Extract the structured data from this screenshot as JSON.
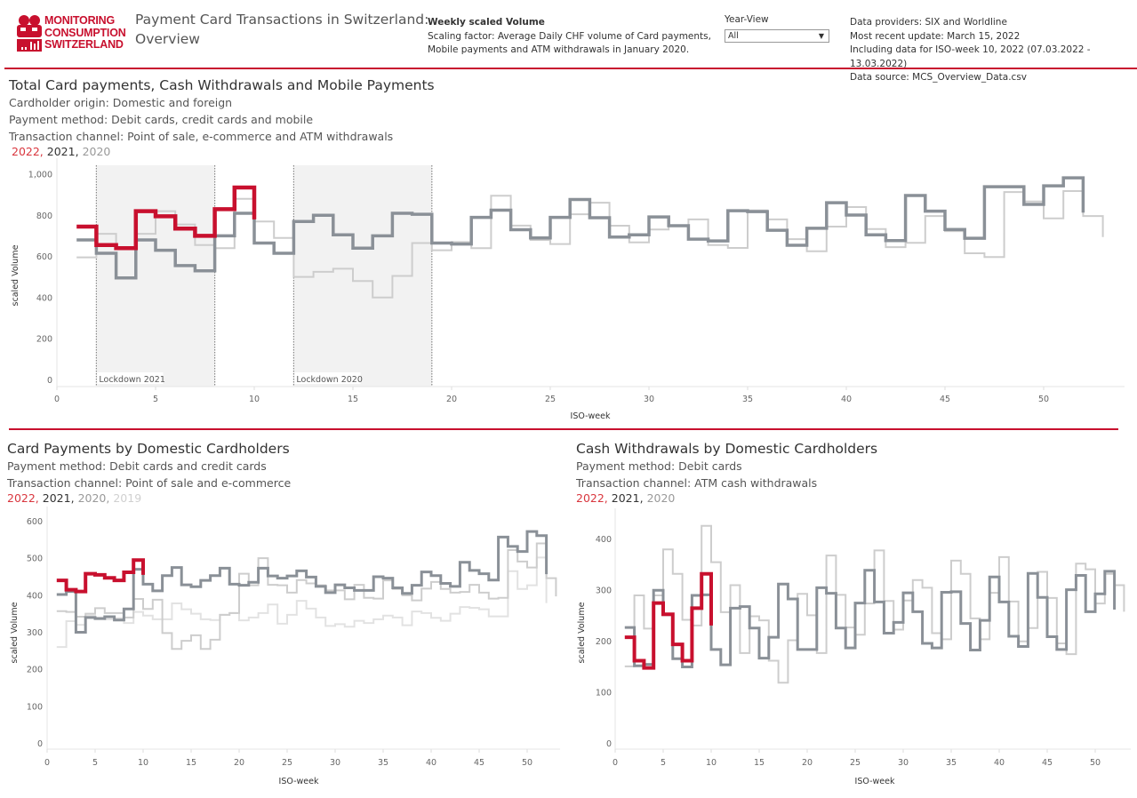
{
  "header": {
    "logo_lines": [
      "MONITORING",
      "CONSUMPTION",
      "SWITZERLAND"
    ],
    "title_line1": "Payment Card Transactions in Switzerland:",
    "title_line2": "Overview",
    "scaling_heading": "Weekly scaled Volume",
    "scaling_line1": "Scaling factor: Average Daily CHF volume of Card payments,",
    "scaling_line2": "Mobile payments and ATM withdrawals in January 2020.",
    "year_view_label": "Year-View",
    "year_view_value": "All",
    "info_line1": "Data providers: SIX and Worldline",
    "info_line2": "Most recent update: March 15, 2022",
    "info_line3": "Including data for ISO-week 10, 2022 (07.03.2022 - 13.03.2022)",
    "info_line4": "Data source: MCS_Overview_Data.csv"
  },
  "colors": {
    "accent": "#c8102e",
    "y2022": "#c8102e",
    "y2021": "#8a9097",
    "y2020": "#cdcdcd",
    "y2019": "#e2e2e2",
    "lockdown": "#f2f2f2"
  },
  "sections": {
    "total": {
      "title": "Total Card payments, Cash Withdrawals and Mobile Payments",
      "sub1": "Cardholder origin: Domestic and foreign",
      "sub2": "Payment method: Debit cards, credit cards and mobile",
      "sub3": "Transaction channel: Point of sale, e-commerce and ATM withdrawals",
      "legend": [
        "2022,",
        "2021,",
        "2020"
      ]
    },
    "card": {
      "title": "Card Payments by Domestic Cardholders",
      "sub1": "Payment method: Debit cards and credit cards",
      "sub2": "Transaction channel: Point of sale and e-commerce",
      "legend": [
        "2022,",
        "2021,",
        "2020,",
        "2019"
      ]
    },
    "cash": {
      "title": "Cash Withdrawals by Domestic Cardholders",
      "sub1": "Payment method: Debit cards",
      "sub2": "Transaction channel: ATM cash withdrawals",
      "legend": [
        "2022,",
        "2021,",
        "2020"
      ]
    }
  },
  "chart_data": [
    {
      "type": "line",
      "step": true,
      "xlabel": "ISO-week",
      "ylabel": "scaled Volume",
      "xlim": [
        0,
        54
      ],
      "ylim": [
        0,
        1000
      ],
      "xticks": [
        0,
        5,
        10,
        15,
        20,
        25,
        30,
        35,
        40,
        45,
        50
      ],
      "yticks": [
        0,
        200,
        400,
        600,
        800,
        1000
      ],
      "ytick_labels": [
        "0",
        "200",
        "400",
        "600",
        "800",
        "1,000"
      ],
      "grid": false,
      "bands": [
        {
          "label": "Lockdown 2021",
          "from": 2,
          "to": 8
        },
        {
          "label": "Lockdown 2020",
          "from": 12,
          "to": 19
        }
      ],
      "series": [
        {
          "year": "2020",
          "values": [
            595,
            710,
            640,
            710,
            820,
            755,
            655,
            640,
            880,
            770,
            690,
            500,
            525,
            540,
            480,
            400,
            505,
            665,
            630,
            670,
            640,
            895,
            750,
            680,
            660,
            805,
            861,
            749,
            668,
            731,
            749,
            780,
            655,
            641,
            824,
            780,
            684,
            625,
            745,
            840,
            733,
            645,
            666,
            796,
            723,
            615,
            597,
            913,
            867,
            785,
            918,
            796,
            694
          ]
        },
        {
          "year": "2021",
          "values": [
            680,
            615,
            495,
            680,
            630,
            555,
            530,
            700,
            810,
            665,
            615,
            770,
            800,
            705,
            640,
            700,
            810,
            805,
            665,
            660,
            790,
            825,
            730,
            690,
            790,
            877,
            788,
            694,
            705,
            792,
            749,
            684,
            675,
            822,
            818,
            727,
            654,
            737,
            861,
            801,
            705,
            677,
            896,
            820,
            731,
            688,
            939,
            939,
            853,
            943,
            982,
            813
          ]
        },
        {
          "year": "2022",
          "values": [
            745,
            655,
            640,
            820,
            795,
            735,
            700,
            830,
            935,
            780
          ]
        }
      ]
    },
    {
      "type": "line",
      "step": true,
      "xlabel": "ISO-week",
      "ylabel": "scaled Volume",
      "xlim": [
        0,
        53
      ],
      "ylim": [
        0,
        600
      ],
      "xticks": [
        0,
        5,
        10,
        15,
        20,
        25,
        30,
        35,
        40,
        45,
        50
      ],
      "yticks": [
        0,
        100,
        200,
        300,
        400,
        500,
        600
      ],
      "ytick_labels": [
        "0",
        "100",
        "200",
        "300",
        "400",
        "500",
        "600"
      ],
      "grid": false,
      "series": [
        {
          "year": "2019",
          "values": [
            260,
            330,
            320,
            345,
            340,
            335,
            338,
            325,
            355,
            345,
            335,
            335,
            378,
            362,
            350,
            335,
            333,
            347,
            352,
            332,
            340,
            352,
            375,
            323,
            347,
            385,
            364,
            340,
            317,
            322,
            315,
            331,
            325,
            335,
            345,
            340,
            319,
            356,
            352,
            339,
            331,
            350,
            368,
            366,
            362,
            343,
            343,
            465,
            417,
            427,
            502,
            379
          ]
        },
        {
          "year": "2020",
          "values": [
            357,
            355,
            342,
            350,
            365,
            352,
            352,
            340,
            390,
            363,
            388,
            298,
            255,
            277,
            292,
            255,
            280,
            347,
            352,
            458,
            427,
            500,
            428,
            427,
            407,
            441,
            432,
            427,
            413,
            413,
            389,
            428,
            393,
            391,
            440,
            417,
            400,
            386,
            418,
            436,
            417,
            407,
            409,
            428,
            407,
            391,
            393,
            522,
            491,
            475,
            540,
            446,
            397
          ]
        },
        {
          "year": "2021",
          "values": [
            402,
            410,
            300,
            340,
            337,
            342,
            333,
            363,
            470,
            430,
            412,
            453,
            475,
            428,
            423,
            440,
            453,
            473,
            430,
            427,
            435,
            473,
            452,
            446,
            452,
            466,
            449,
            424,
            407,
            428,
            420,
            413,
            413,
            450,
            446,
            420,
            405,
            427,
            463,
            453,
            432,
            424,
            489,
            467,
            458,
            441,
            557,
            532,
            518,
            572,
            561,
            457
          ]
        },
        {
          "year": "2022",
          "values": [
            440,
            415,
            410,
            458,
            455,
            447,
            440,
            462,
            495,
            455
          ]
        }
      ]
    },
    {
      "type": "line",
      "step": true,
      "xlabel": "ISO-week",
      "ylabel": "scaled Volume",
      "xlim": [
        0,
        53.5
      ],
      "ylim": [
        0,
        440
      ],
      "xticks": [
        0,
        5,
        10,
        15,
        20,
        25,
        30,
        35,
        40,
        45,
        50
      ],
      "yticks": [
        0,
        100,
        200,
        300,
        400
      ],
      "ytick_labels": [
        "0",
        "100",
        "200",
        "300",
        "400"
      ],
      "grid": false,
      "series": [
        {
          "year": "2020",
          "values": [
            151,
            290,
            225,
            290,
            380,
            332,
            242,
            231,
            426,
            355,
            257,
            310,
            177,
            249,
            241,
            162,
            119,
            202,
            293,
            251,
            177,
            368,
            291,
            227,
            213,
            274,
            378,
            279,
            223,
            280,
            320,
            305,
            216,
            204,
            358,
            332,
            245,
            204,
            295,
            365,
            278,
            200,
            226,
            336,
            285,
            196,
            175,
            352,
            341,
            274,
            332,
            310,
            258
          ]
        },
        {
          "year": "2021",
          "values": [
            227,
            152,
            155,
            300,
            252,
            166,
            150,
            290,
            291,
            184,
            154,
            265,
            268,
            226,
            167,
            208,
            312,
            283,
            184,
            184,
            305,
            294,
            226,
            187,
            275,
            339,
            277,
            216,
            237,
            295,
            258,
            196,
            187,
            296,
            297,
            235,
            183,
            241,
            326,
            277,
            210,
            190,
            333,
            286,
            209,
            184,
            301,
            329,
            258,
            293,
            337,
            262
          ]
        },
        {
          "year": "2022",
          "values": [
            208,
            162,
            148,
            275,
            253,
            194,
            162,
            265,
            332,
            231
          ]
        }
      ]
    }
  ]
}
